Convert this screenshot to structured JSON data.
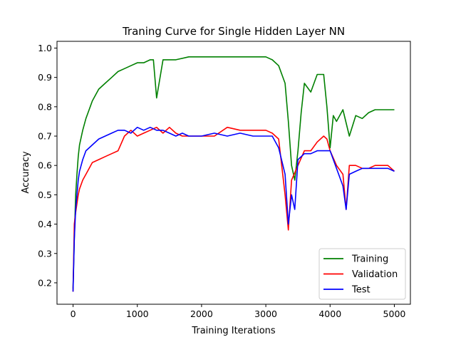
{
  "chart_data": {
    "type": "line",
    "title": "Traning Curve for Single Hidden Layer NN",
    "xlabel": "Training Iterations",
    "ylabel": "Accuracy",
    "xlim": [
      -250,
      5250
    ],
    "ylim": [
      0.127,
      1.023
    ],
    "xticks": [
      0,
      1000,
      2000,
      3000,
      4000,
      5000
    ],
    "xtick_labels": [
      "0",
      "1000",
      "2000",
      "3000",
      "4000",
      "5000"
    ],
    "yticks": [
      0.2,
      0.3,
      0.4,
      0.5,
      0.6,
      0.7,
      0.8,
      0.9,
      1.0
    ],
    "ytick_labels": [
      "0.2",
      "0.3",
      "0.4",
      "0.5",
      "0.6",
      "0.7",
      "0.8",
      "0.9",
      "1.0"
    ],
    "grid": false,
    "legend_position": "lower right",
    "series": [
      {
        "name": "Training",
        "color": "#008000",
        "x": [
          0,
          20,
          40,
          60,
          80,
          100,
          150,
          200,
          250,
          300,
          400,
          500,
          600,
          700,
          800,
          900,
          1000,
          1100,
          1200,
          1250,
          1300,
          1400,
          1500,
          1600,
          1800,
          2000,
          2200,
          2400,
          2600,
          2800,
          2900,
          3000,
          3100,
          3200,
          3300,
          3350,
          3400,
          3450,
          3500,
          3550,
          3600,
          3700,
          3800,
          3900,
          3950,
          4000,
          4050,
          4100,
          4200,
          4300,
          4400,
          4500,
          4600,
          4700,
          4800,
          4900,
          5000
        ],
        "values": [
          0.18,
          0.35,
          0.5,
          0.57,
          0.63,
          0.67,
          0.72,
          0.76,
          0.79,
          0.82,
          0.86,
          0.88,
          0.9,
          0.92,
          0.93,
          0.94,
          0.95,
          0.95,
          0.96,
          0.96,
          0.83,
          0.96,
          0.96,
          0.96,
          0.97,
          0.97,
          0.97,
          0.97,
          0.97,
          0.97,
          0.97,
          0.97,
          0.96,
          0.94,
          0.88,
          0.75,
          0.6,
          0.55,
          0.65,
          0.78,
          0.88,
          0.85,
          0.91,
          0.91,
          0.8,
          0.66,
          0.77,
          0.75,
          0.79,
          0.7,
          0.77,
          0.76,
          0.78,
          0.79,
          0.79,
          0.79,
          0.79
        ]
      },
      {
        "name": "Validation",
        "color": "#ff0000",
        "x": [
          0,
          20,
          40,
          60,
          80,
          100,
          150,
          200,
          300,
          400,
          500,
          600,
          700,
          800,
          900,
          1000,
          1100,
          1200,
          1300,
          1400,
          1500,
          1600,
          1700,
          1800,
          2000,
          2200,
          2400,
          2600,
          2800,
          3000,
          3100,
          3200,
          3300,
          3350,
          3400,
          3500,
          3600,
          3700,
          3800,
          3900,
          3950,
          4000,
          4100,
          4200,
          4250,
          4300,
          4400,
          4500,
          4600,
          4700,
          4800,
          4900,
          5000
        ],
        "values": [
          0.17,
          0.4,
          0.44,
          0.47,
          0.5,
          0.52,
          0.55,
          0.57,
          0.61,
          0.62,
          0.63,
          0.64,
          0.65,
          0.7,
          0.72,
          0.7,
          0.71,
          0.72,
          0.73,
          0.71,
          0.73,
          0.71,
          0.7,
          0.7,
          0.7,
          0.7,
          0.73,
          0.72,
          0.72,
          0.72,
          0.71,
          0.69,
          0.5,
          0.38,
          0.55,
          0.6,
          0.65,
          0.65,
          0.68,
          0.7,
          0.69,
          0.65,
          0.6,
          0.57,
          0.45,
          0.6,
          0.6,
          0.59,
          0.59,
          0.6,
          0.6,
          0.6,
          0.58
        ]
      },
      {
        "name": "Test",
        "color": "#0000ff",
        "x": [
          0,
          20,
          40,
          60,
          80,
          100,
          150,
          200,
          300,
          400,
          500,
          600,
          700,
          800,
          900,
          1000,
          1100,
          1200,
          1300,
          1400,
          1500,
          1600,
          1700,
          1800,
          2000,
          2200,
          2400,
          2600,
          2800,
          3000,
          3100,
          3200,
          3300,
          3350,
          3400,
          3450,
          3500,
          3600,
          3700,
          3800,
          3900,
          4000,
          4100,
          4200,
          4250,
          4300,
          4400,
          4500,
          4600,
          4700,
          4800,
          4900,
          5000
        ],
        "values": [
          0.17,
          0.35,
          0.45,
          0.5,
          0.55,
          0.58,
          0.62,
          0.65,
          0.67,
          0.69,
          0.7,
          0.71,
          0.72,
          0.72,
          0.71,
          0.73,
          0.72,
          0.73,
          0.72,
          0.72,
          0.71,
          0.7,
          0.71,
          0.7,
          0.7,
          0.71,
          0.7,
          0.71,
          0.7,
          0.7,
          0.7,
          0.66,
          0.57,
          0.4,
          0.5,
          0.45,
          0.62,
          0.64,
          0.64,
          0.65,
          0.65,
          0.65,
          0.59,
          0.53,
          0.45,
          0.57,
          0.58,
          0.59,
          0.59,
          0.59,
          0.59,
          0.59,
          0.58
        ]
      }
    ]
  }
}
